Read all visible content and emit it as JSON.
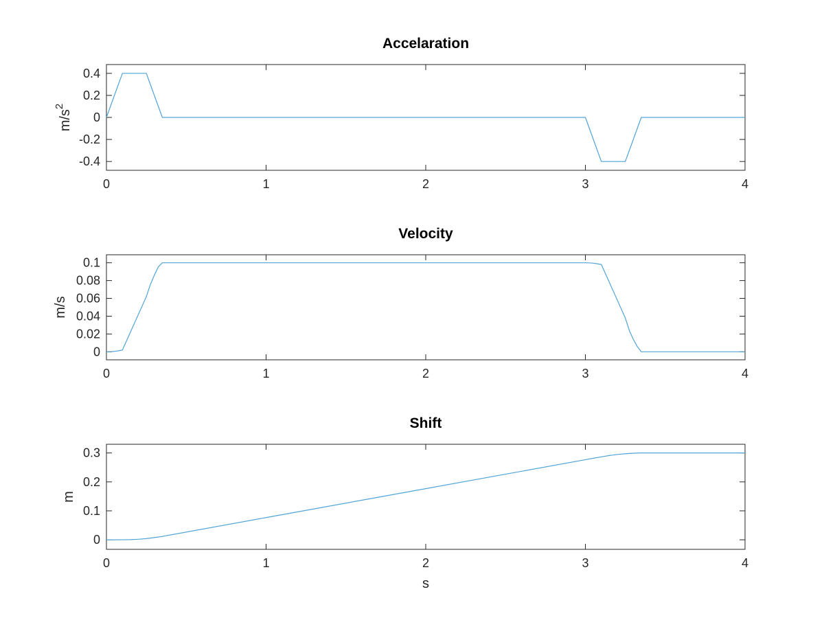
{
  "figure": {
    "background": "#ffffff"
  },
  "chart_data": [
    {
      "type": "line",
      "title": "Accelaration",
      "xlabel": "",
      "ylabel": "m/s",
      "ylabel_superscript": "2",
      "xlim": [
        0,
        4
      ],
      "ylim": [
        -0.48,
        0.48
      ],
      "xticks": [
        0,
        1,
        2,
        3,
        4
      ],
      "xtick_labels": [
        "0",
        "1",
        "2",
        "3",
        "4"
      ],
      "yticks": [
        -0.4,
        -0.2,
        0,
        0.2,
        0.4
      ],
      "ytick_labels": [
        "-0.4",
        "-0.2",
        "0",
        "0.2",
        "0.4"
      ],
      "grid": false,
      "color": "#4fa3d7",
      "series": [
        {
          "x": [
            0,
            0.1,
            0.25,
            0.35,
            3.0,
            3.1,
            3.25,
            3.35,
            4.0
          ],
          "y": [
            0,
            0.4,
            0.4,
            0,
            0,
            -0.4,
            -0.4,
            0,
            0
          ]
        }
      ]
    },
    {
      "type": "line",
      "title": "Velocity",
      "xlabel": "",
      "ylabel": "m/s",
      "xlim": [
        0,
        4
      ],
      "ylim": [
        -0.009,
        0.109
      ],
      "xticks": [
        0,
        1,
        2,
        3,
        4
      ],
      "xtick_labels": [
        "0",
        "1",
        "2",
        "3",
        "4"
      ],
      "yticks": [
        0,
        0.02,
        0.04,
        0.06,
        0.08,
        0.1
      ],
      "ytick_labels": [
        "0",
        "0.02",
        "0.04",
        "0.06",
        "0.08",
        "0.1"
      ],
      "grid": false,
      "color": "#4fa3d7",
      "series": [
        {
          "x": [
            0,
            0.025,
            0.05,
            0.075,
            0.1,
            0.25,
            0.275,
            0.3,
            0.325,
            0.35,
            3.0,
            3.025,
            3.05,
            3.075,
            3.1,
            3.25,
            3.275,
            3.3,
            3.325,
            3.35,
            4.0
          ],
          "y": [
            0,
            0.000125,
            0.0005,
            0.001125,
            0.002,
            0.062,
            0.0754,
            0.086,
            0.0954,
            0.1,
            0.1,
            0.099875,
            0.0995,
            0.098875,
            0.098,
            0.038,
            0.024,
            0.014,
            0.006,
            0.0,
            0.0
          ]
        }
      ]
    },
    {
      "type": "line",
      "title": "Shift",
      "xlabel": "s",
      "ylabel": "m",
      "xlim": [
        0,
        4
      ],
      "ylim": [
        -0.033,
        0.33
      ],
      "xticks": [
        0,
        1,
        2,
        3,
        4
      ],
      "xtick_labels": [
        "0",
        "1",
        "2",
        "3",
        "4"
      ],
      "yticks": [
        0,
        0.1,
        0.2,
        0.3
      ],
      "ytick_labels": [
        "0",
        "0.1",
        "0.2",
        "0.3"
      ],
      "grid": false,
      "color": "#4fa3d7",
      "series": [
        {
          "x": [
            0,
            0.05,
            0.1,
            0.15,
            0.2,
            0.25,
            0.3,
            0.35,
            1.0,
            2.0,
            3.0,
            3.05,
            3.1,
            3.15,
            3.2,
            3.25,
            3.3,
            3.35,
            4.0
          ],
          "y": [
            0,
            1e-05,
            7e-05,
            0.0005,
            0.0019,
            0.0041,
            0.0076,
            0.0117,
            0.0767,
            0.1767,
            0.2767,
            0.2817,
            0.2865,
            0.2911,
            0.2949,
            0.2974,
            0.2992,
            0.3,
            0.3
          ]
        }
      ]
    }
  ]
}
